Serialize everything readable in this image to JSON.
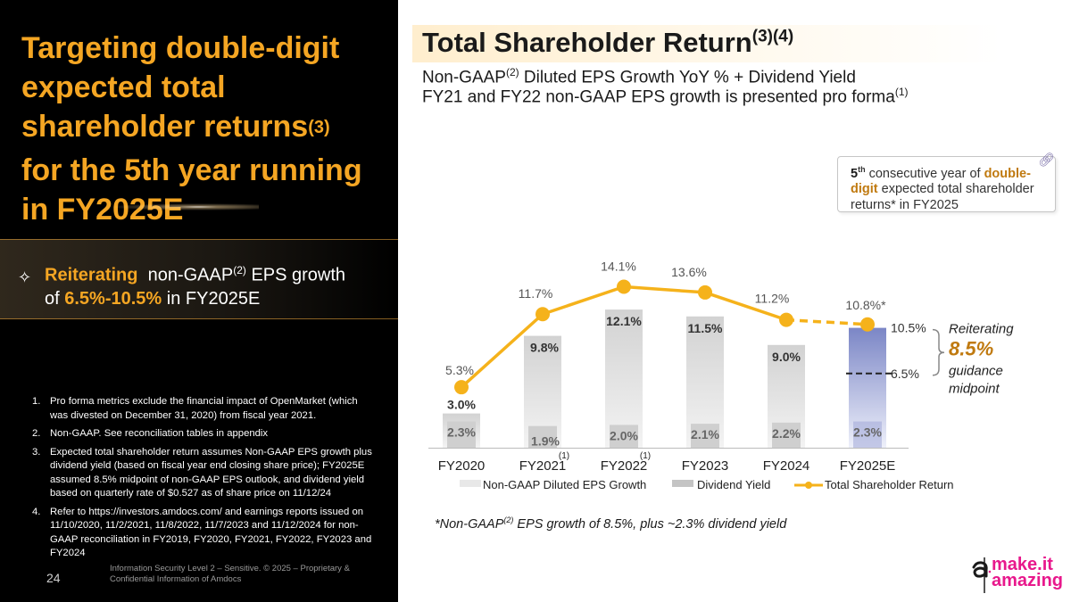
{
  "left_panel": {
    "title_l1": "Targeting double-digit",
    "title_l2": "expected total",
    "title_l3": "shareholder returns",
    "title_sup": "(3)",
    "title_l4": "for the 5th year running",
    "title_l5": "in FY2025E",
    "banner": {
      "icon": "sparkle-icon",
      "highlight": "Reiterating",
      "text_a": "non-GAAP",
      "sup": "(2)",
      "text_b": "EPS growth",
      "text_c": "of",
      "range": "6.5%-10.5%",
      "text_d": "in FY2025E"
    },
    "footnotes": [
      {
        "num": "1.",
        "text": "Pro forma metrics exclude the financial impact of OpenMarket (which was divested on December 31, 2020) from fiscal year 2021."
      },
      {
        "num": "2.",
        "text": "Non-GAAP. See reconciliation tables in appendix"
      },
      {
        "num": "3.",
        "text": "Expected total shareholder return assumes Non-GAAP EPS growth plus dividend yield (based on fiscal year end closing share price); FY2025E assumed 8.5% midpoint of non-GAAP EPS outlook, and dividend yield based on quarterly rate of $0.527 as of share price on 11/12/24"
      },
      {
        "num": "4.",
        "text": "Refer to https://investors.amdocs.com/ and earnings reports issued on 11/10/2020, 11/2/2021, 11/8/2022, 11/7/2023 and 11/12/2024 for non-GAAP reconciliation in FY2019, FY2020, FY2021, FY2022, FY2023 and FY2024"
      }
    ],
    "page_number": "24",
    "confidential": "Information Security Level 2 – Sensitive. © 2025 – Proprietary & Confidential Information of Amdocs"
  },
  "header": {
    "title": "Total Shareholder Return",
    "title_sup": "(3)(4)",
    "subtitle1_a": "Non-GAAP",
    "subtitle1_sup": "(2)",
    "subtitle1_b": " Diluted EPS Growth YoY % + Dividend Yield",
    "subtitle2": "FY21 and FY22 non-GAAP EPS growth is presented pro forma",
    "subtitle2_sup": "(1)"
  },
  "callout": {
    "ordinal": "5",
    "ordinal_sup": "th",
    "text_a": " consecutive year of ",
    "highlight": "double-digit",
    "text_b": " expected total shareholder returns* in FY2025",
    "icon": "link-icon"
  },
  "chart_data": {
    "type": "bar",
    "categories": [
      "FY2020",
      "FY2021",
      "FY2022",
      "FY2023",
      "FY2024",
      "FY2025E"
    ],
    "category_footnotes": [
      "",
      "(1)",
      "(1)",
      "",
      "",
      ""
    ],
    "series": [
      {
        "name": "Non-GAAP Diluted EPS Growth",
        "values": [
          3.0,
          9.8,
          12.1,
          11.5,
          9.0,
          8.5
        ],
        "labels": [
          "3.0%",
          "9.8%",
          "12.1%",
          "11.5%",
          "9.0%",
          ""
        ]
      },
      {
        "name": "Dividend Yield",
        "values": [
          2.3,
          1.9,
          2.0,
          2.1,
          2.2,
          2.3
        ],
        "labels": [
          "2.3%",
          "1.9%",
          "2.0%",
          "2.1%",
          "2.2%",
          "2.3%"
        ]
      },
      {
        "name": "Total Shareholder Return",
        "type": "line",
        "values": [
          5.3,
          11.7,
          14.1,
          13.6,
          11.2,
          10.8
        ],
        "labels": [
          "5.3%",
          "11.7%",
          "14.1%",
          "13.6%",
          "11.2%",
          "10.8%*"
        ],
        "dashed_last_segment": true
      }
    ],
    "guidance": {
      "high_label": "10.5%",
      "high": 10.5,
      "low_label": "6.5%",
      "low": 6.5,
      "note_a": "Reiterating",
      "note_value": "8.5%",
      "note_b": "guidance",
      "note_c": "midpoint"
    },
    "ylim": [
      0,
      15
    ],
    "colors": {
      "eps_growth": "#d9d9d9",
      "dividend": "#c8c8c8",
      "tsr_line": "#f5b21b",
      "forecast_top": "#7b86c6",
      "forecast_bottom": "#eef0fa",
      "label_text": "#444444"
    }
  },
  "footer_note": {
    "a": "*Non-GAAP",
    "sup": "(2)",
    "b": " EPS growth of 8.5%, plus ~2.3% dividend yield"
  },
  "brand": {
    "line1": "make.it",
    "line2": "amazing",
    "mark_icon": "amdocs-logo-icon",
    "color": "#e8188c"
  }
}
